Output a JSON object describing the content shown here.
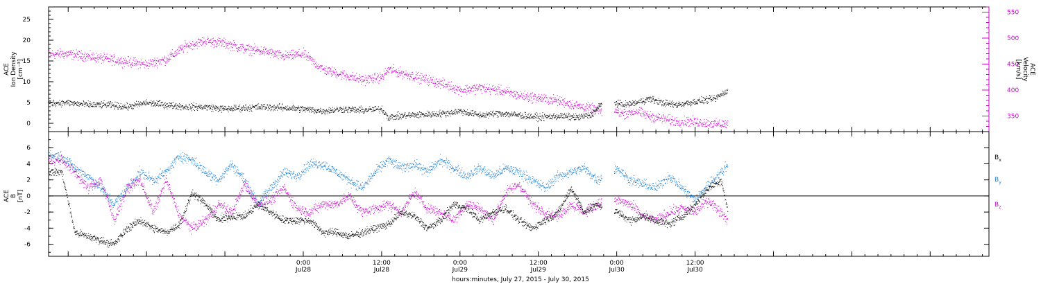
{
  "colors": {
    "black": "#000000",
    "magenta": "#cc00cc",
    "blue": "#1a7fd6"
  },
  "x_axis": {
    "range_hours": [
      -15,
      129
    ],
    "major_ticks": [
      {
        "hour": 24,
        "time": "0:00",
        "date": "Jul28"
      },
      {
        "hour": 36,
        "time": "12:00",
        "date": "Jul28"
      },
      {
        "hour": 48,
        "time": "0:00",
        "date": "Jul29"
      },
      {
        "hour": 60,
        "time": "12:00",
        "date": "Jul29"
      },
      {
        "hour": 72,
        "time": "0:00",
        "date": "Jul30"
      },
      {
        "hour": 84,
        "time": "12:00",
        "date": "Jul30"
      }
    ],
    "title": "hours:minutes, July 27, 2015 - July 30, 2015"
  },
  "chart_data": [
    {
      "type": "scatter",
      "panel": "top",
      "ylabel_left": [
        "ACE",
        "Ion Density",
        "[cm⁻³]"
      ],
      "ylabel_right": [
        "ACE",
        "Velocity",
        "[km/s]"
      ],
      "ylim_left": [
        -2,
        28
      ],
      "ylim_right": [
        320,
        560
      ],
      "left_ticks": [
        "0",
        "5",
        "10",
        "15",
        "20",
        "25"
      ],
      "right_ticks": [
        "350",
        "400",
        "450",
        "500",
        "550"
      ],
      "left_tick_values": [
        0,
        5,
        10,
        15,
        20,
        25
      ],
      "right_tick_values": [
        350,
        400,
        450,
        500,
        550
      ],
      "series": [
        {
          "name": "Ion Density",
          "axis": "left",
          "color": "#000000",
          "gaps": [
            [
              69.7,
              71.6
            ],
            [
              89.4,
              129
            ]
          ],
          "x": [
            -12,
            -9,
            -6,
            -3,
            0,
            3,
            6,
            9,
            12,
            15,
            18,
            21,
            24,
            27,
            30,
            33,
            36,
            37,
            40,
            43,
            46,
            48,
            51,
            54,
            57,
            60,
            63,
            66,
            68,
            69.5,
            71.8,
            73,
            75,
            77,
            79,
            81,
            83,
            85,
            87,
            89
          ],
          "y": [
            5,
            4.5,
            4.5,
            4,
            5,
            4.5,
            4,
            4,
            3.5,
            3.8,
            4,
            3.8,
            3.5,
            3,
            3.5,
            3.2,
            3.5,
            1.5,
            2,
            2.2,
            2.5,
            3,
            2,
            2.5,
            2,
            1.5,
            1.8,
            1.5,
            2,
            4.5,
            5,
            4.5,
            5,
            6,
            5,
            4.5,
            5,
            5.5,
            6,
            8
          ]
        },
        {
          "name": "Velocity",
          "axis": "right",
          "color": "#cc00cc",
          "gaps": [
            [
              69.7,
              71.6
            ],
            [
              89.4,
              129
            ]
          ],
          "x": [
            -12,
            -9,
            -6,
            -3,
            0,
            3,
            6,
            9,
            12,
            15,
            18,
            21,
            24,
            27,
            30,
            33,
            36,
            37,
            40,
            43,
            46,
            48,
            51,
            54,
            57,
            60,
            63,
            66,
            68,
            69.5,
            71.8,
            73,
            75,
            77,
            79,
            81,
            83,
            85,
            87,
            89
          ],
          "y": [
            470,
            465,
            460,
            455,
            450,
            460,
            485,
            495,
            490,
            480,
            475,
            465,
            470,
            440,
            430,
            420,
            425,
            440,
            430,
            420,
            410,
            400,
            405,
            400,
            390,
            385,
            380,
            370,
            365,
            360,
            360,
            355,
            360,
            350,
            345,
            340,
            340,
            338,
            335,
            335
          ]
        }
      ]
    },
    {
      "type": "scatter",
      "panel": "bottom",
      "ylabel_left": [
        "ACE",
        "B",
        "[nT]"
      ],
      "ylim": [
        -7.5,
        8
      ],
      "ticks": [
        "-6",
        "-4",
        "-2",
        "0",
        "2",
        "4",
        "6"
      ],
      "tick_values": [
        -6,
        -4,
        -2,
        0,
        2,
        4,
        6
      ],
      "zero_line": true,
      "series": [
        {
          "name": "Bx",
          "label_main": "B",
          "label_sub": "x",
          "color": "#000000",
          "gaps": [
            [
              69.7,
              71.6
            ],
            [
              89.4,
              129
            ]
          ],
          "x": [
            -13,
            -11,
            -9,
            -7,
            -5,
            -3,
            -1,
            1,
            3,
            5,
            7,
            9,
            11,
            13,
            15,
            17,
            19,
            21,
            23,
            25,
            27,
            29,
            31,
            33,
            35,
            37,
            39,
            41,
            43,
            45,
            47,
            49,
            51,
            53,
            55,
            57,
            59,
            61,
            63,
            65,
            67,
            69,
            72,
            74,
            76,
            78,
            80,
            82,
            84,
            86,
            88,
            89
          ],
          "y": [
            3,
            -4.5,
            -5,
            -5.5,
            -6,
            -4,
            -3,
            -4,
            -4.5,
            -3.5,
            0.5,
            -1,
            -3,
            -2.5,
            -2.5,
            -1,
            -2,
            -3,
            -3,
            -3,
            -4.5,
            -4.5,
            -5,
            -4.5,
            -4,
            -3.5,
            -2,
            -2.5,
            -4,
            -3,
            -1,
            -1.5,
            -3,
            -2,
            -1.5,
            -3,
            -4,
            -3,
            -2,
            1,
            -2,
            -1,
            -2,
            -3,
            -2.5,
            -3,
            -3.5,
            -2.5,
            -1,
            1,
            2,
            -2
          ]
        },
        {
          "name": "By",
          "label_main": "B",
          "label_sub": "y",
          "color": "#1a7fd6",
          "gaps": [
            [
              69.7,
              71.6
            ],
            [
              89.4,
              129
            ]
          ],
          "x": [
            -13,
            -11,
            -9,
            -7,
            -5,
            -3,
            -1,
            1,
            3,
            5,
            7,
            9,
            11,
            13,
            15,
            17,
            19,
            21,
            23,
            25,
            27,
            29,
            31,
            33,
            35,
            37,
            39,
            41,
            43,
            45,
            47,
            49,
            51,
            53,
            55,
            57,
            59,
            61,
            63,
            65,
            67,
            69,
            72,
            74,
            76,
            78,
            80,
            82,
            84,
            86,
            88,
            89
          ],
          "y": [
            5,
            3.5,
            2.5,
            1,
            -1,
            1,
            3,
            2,
            3,
            5,
            4.5,
            3,
            2,
            4,
            2,
            -1,
            1,
            3,
            2.5,
            4,
            4,
            3,
            2,
            1,
            3,
            4.5,
            3.5,
            4,
            3,
            4.5,
            3.5,
            2.5,
            3.5,
            2.5,
            3.5,
            3,
            2,
            1,
            2.5,
            3,
            3.5,
            2,
            3.5,
            2,
            1.5,
            1,
            2.5,
            1,
            -0.5,
            1.5,
            3,
            4
          ]
        },
        {
          "name": "Bz",
          "label_main": "B",
          "label_sub": "z",
          "color": "#cc00cc",
          "gaps": [
            [
              69.7,
              71.6
            ],
            [
              89.4,
              129
            ]
          ],
          "x": [
            -13,
            -11,
            -9,
            -7,
            -5,
            -3,
            -1,
            1,
            3,
            5,
            7,
            9,
            11,
            13,
            15,
            17,
            19,
            21,
            23,
            25,
            27,
            29,
            31,
            33,
            35,
            37,
            39,
            41,
            43,
            45,
            47,
            49,
            51,
            53,
            55,
            57,
            59,
            61,
            63,
            65,
            67,
            69,
            72,
            74,
            76,
            78,
            80,
            82,
            84,
            86,
            88,
            89
          ],
          "y": [
            4.5,
            3,
            1,
            2,
            -3,
            1,
            2,
            -2,
            2,
            -2.5,
            -4,
            -3,
            -1,
            -2,
            1.5,
            -1,
            -0.5,
            1,
            -1.5,
            -2,
            -1,
            -1,
            0,
            -2,
            -1.5,
            -1,
            -2,
            0.5,
            -1.5,
            -2,
            -3,
            -1,
            -1.5,
            -3,
            0.5,
            1.5,
            -1,
            -2,
            -2.5,
            -1,
            -2,
            -1,
            -0.5,
            -1,
            -2.5,
            -3,
            -2,
            -1.5,
            -2,
            -0.5,
            -2,
            -3
          ]
        }
      ]
    }
  ]
}
